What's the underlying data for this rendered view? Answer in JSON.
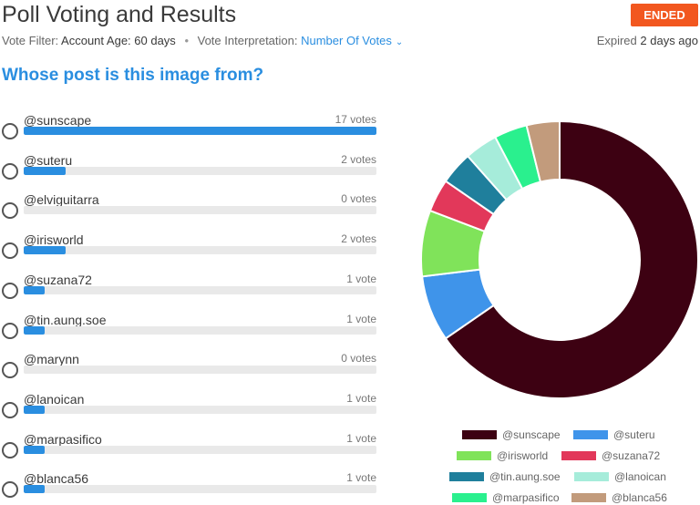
{
  "header": {
    "title": "Poll Voting and Results",
    "status": "ENDED",
    "filter_label": "Vote Filter:",
    "filter_value": "Account Age: 60 days",
    "interp_label": "Vote Interpretation:",
    "interp_value": "Number Of Votes",
    "expired_label": "Expired",
    "expired_value": "2 days ago"
  },
  "question": "Whose post is this image from?",
  "options": [
    {
      "label": "@sunscape",
      "votes_text": "17 votes",
      "votes": 17
    },
    {
      "label": "@suteru",
      "votes_text": "2 votes",
      "votes": 2
    },
    {
      "label": "@elviguitarra",
      "votes_text": "0 votes",
      "votes": 0
    },
    {
      "label": "@irisworld",
      "votes_text": "2 votes",
      "votes": 2
    },
    {
      "label": "@suzana72",
      "votes_text": "1 vote",
      "votes": 1
    },
    {
      "label": "@tin.aung.soe",
      "votes_text": "1 vote",
      "votes": 1
    },
    {
      "label": "@marynn",
      "votes_text": "0 votes",
      "votes": 0
    },
    {
      "label": "@lanoican",
      "votes_text": "1 vote",
      "votes": 1
    },
    {
      "label": "@marpasifico",
      "votes_text": "1 vote",
      "votes": 1
    },
    {
      "label": "@blanca56",
      "votes_text": "1 vote",
      "votes": 1
    }
  ],
  "chart_data": {
    "type": "pie",
    "series": [
      {
        "name": "@sunscape",
        "value": 17,
        "color": "#3d0112"
      },
      {
        "name": "@suteru",
        "value": 2,
        "color": "#3f94ea"
      },
      {
        "name": "@irisworld",
        "value": 2,
        "color": "#80e35a"
      },
      {
        "name": "@suzana72",
        "value": 1,
        "color": "#e2385a"
      },
      {
        "name": "@tin.aung.soe",
        "value": 1,
        "color": "#1f7f9c"
      },
      {
        "name": "@lanoican",
        "value": 1,
        "color": "#a6ecda"
      },
      {
        "name": "@marpasifico",
        "value": 1,
        "color": "#2af08e"
      },
      {
        "name": "@blanca56",
        "value": 1,
        "color": "#c29b7c"
      }
    ],
    "legend": "bottom"
  }
}
